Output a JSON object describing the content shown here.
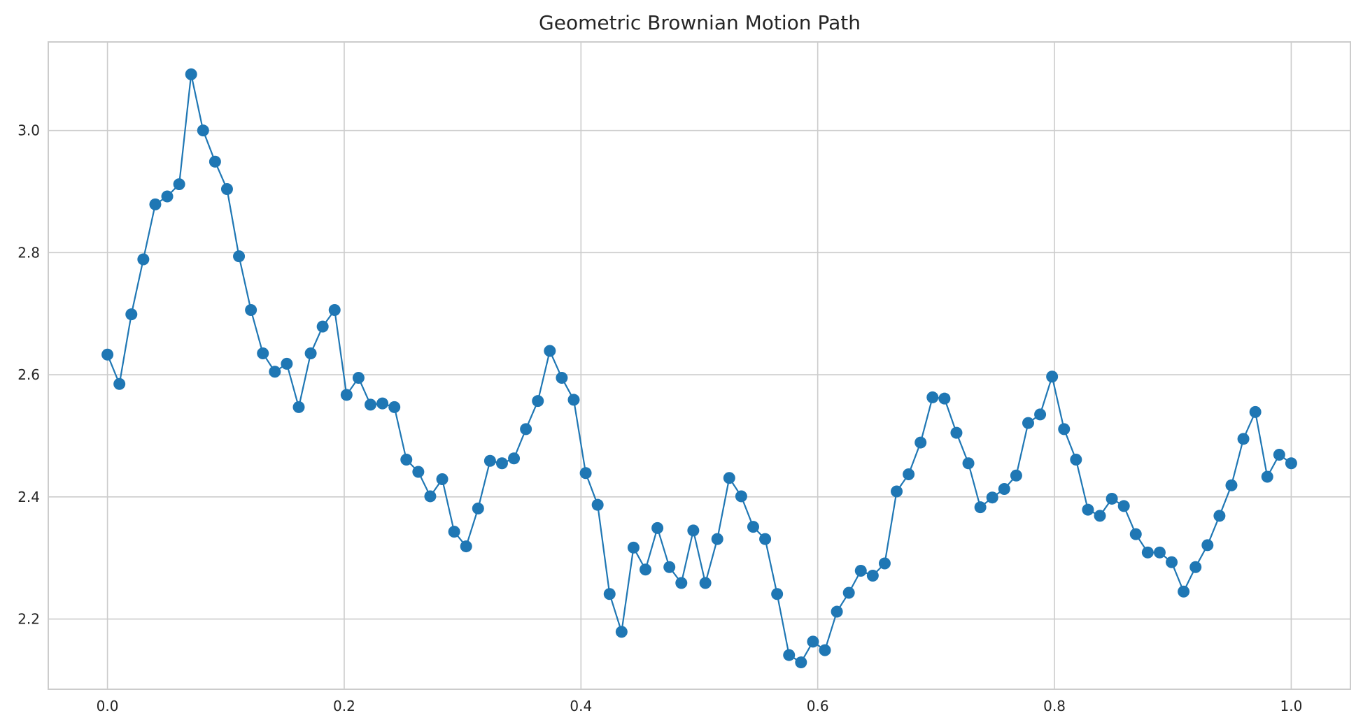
{
  "chart_data": {
    "type": "line",
    "title": "Geometric Brownian Motion Path",
    "xlabel": "",
    "ylabel": "",
    "xlim": [
      -0.05,
      1.05
    ],
    "ylim": [
      2.085,
      3.145
    ],
    "xticks": [
      0.0,
      0.2,
      0.4,
      0.6,
      0.8,
      1.0
    ],
    "xtick_labels": [
      "0.0",
      "0.2",
      "0.4",
      "0.6",
      "0.8",
      "1.0"
    ],
    "yticks": [
      2.2,
      2.4,
      2.6,
      2.8,
      3.0
    ],
    "ytick_labels": [
      "2.2",
      "2.4",
      "2.6",
      "2.8",
      "3.0"
    ],
    "grid": true,
    "marker": "circle",
    "color": "#1f77b4",
    "series": [
      {
        "x": [
          0.0,
          0.0101,
          0.0202,
          0.0303,
          0.0404,
          0.0505,
          0.0606,
          0.0707,
          0.0808,
          0.0909,
          0.101,
          0.1111,
          0.1212,
          0.1313,
          0.1414,
          0.1515,
          0.1616,
          0.1717,
          0.1818,
          0.1919,
          0.202,
          0.2121,
          0.2222,
          0.2323,
          0.2424,
          0.2525,
          0.2626,
          0.2727,
          0.2828,
          0.2929,
          0.303,
          0.3131,
          0.3232,
          0.3333,
          0.3434,
          0.3535,
          0.3636,
          0.3737,
          0.3838,
          0.3939,
          0.404,
          0.4141,
          0.4242,
          0.4343,
          0.4444,
          0.4545,
          0.4646,
          0.4747,
          0.4848,
          0.4949,
          0.5051,
          0.5152,
          0.5253,
          0.5354,
          0.5455,
          0.5556,
          0.5657,
          0.5758,
          0.5859,
          0.596,
          0.6061,
          0.6162,
          0.6263,
          0.6364,
          0.6465,
          0.6566,
          0.6667,
          0.6768,
          0.6869,
          0.697,
          0.7071,
          0.7172,
          0.7273,
          0.7374,
          0.7475,
          0.7576,
          0.7677,
          0.7778,
          0.7879,
          0.798,
          0.8081,
          0.8182,
          0.8283,
          0.8384,
          0.8485,
          0.8586,
          0.8687,
          0.8788,
          0.8889,
          0.899,
          0.9091,
          0.9192,
          0.9293,
          0.9394,
          0.9495,
          0.9596,
          0.9697,
          0.9798,
          0.9899,
          1.0
        ],
        "y": [
          2.633,
          2.585,
          2.699,
          2.789,
          2.879,
          2.892,
          2.912,
          3.092,
          3.0,
          2.949,
          2.904,
          2.794,
          2.706,
          2.635,
          2.605,
          2.618,
          2.547,
          2.635,
          2.679,
          2.706,
          2.567,
          2.595,
          2.551,
          2.553,
          2.547,
          2.461,
          2.441,
          2.401,
          2.429,
          2.343,
          2.319,
          2.381,
          2.459,
          2.455,
          2.463,
          2.511,
          2.557,
          2.639,
          2.595,
          2.559,
          2.439,
          2.387,
          2.241,
          2.179,
          2.317,
          2.281,
          2.349,
          2.285,
          2.259,
          2.345,
          2.259,
          2.331,
          2.431,
          2.401,
          2.351,
          2.331,
          2.241,
          2.141,
          2.129,
          2.163,
          2.149,
          2.212,
          2.243,
          2.279,
          2.271,
          2.291,
          2.409,
          2.437,
          2.489,
          2.563,
          2.561,
          2.505,
          2.455,
          2.383,
          2.399,
          2.413,
          2.435,
          2.521,
          2.535,
          2.597,
          2.511,
          2.461,
          2.379,
          2.369,
          2.397,
          2.385,
          2.339,
          2.309,
          2.309,
          2.293,
          2.245,
          2.285,
          2.321,
          2.369,
          2.419,
          2.495,
          2.539,
          2.433,
          2.469,
          2.455
        ]
      }
    ]
  }
}
